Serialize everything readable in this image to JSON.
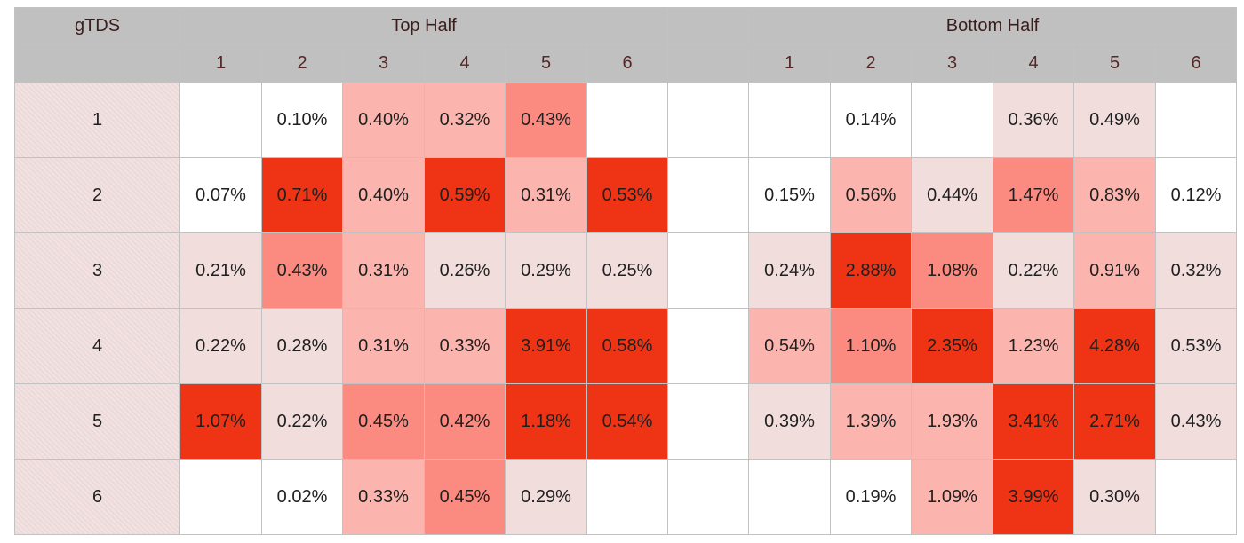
{
  "table": {
    "corner_label": "gTDS",
    "top_half_label": "Top Half",
    "bottom_half_label": "Bottom Half"
  },
  "colors": {
    "header_bg": "#c0c0c0",
    "row_label_bg": "#f1dede",
    "level_0": "#ffffff",
    "level_1": "#f2dddd",
    "level_2": "#fbb5ae",
    "level_3": "#fb8b80",
    "level_4": "#ee3415"
  },
  "chart_data": {
    "type": "heatmap",
    "unit": "%",
    "row_labels": [
      "1",
      "2",
      "3",
      "4",
      "5",
      "6"
    ],
    "column_labels": [
      "1",
      "2",
      "3",
      "4",
      "5",
      "6"
    ],
    "groups": [
      {
        "name": "Top Half",
        "values": [
          [
            null,
            0.1,
            0.4,
            0.32,
            0.43,
            null
          ],
          [
            0.07,
            0.71,
            0.4,
            0.59,
            0.31,
            0.53
          ],
          [
            0.21,
            0.43,
            0.31,
            0.26,
            0.29,
            0.25
          ],
          [
            0.22,
            0.28,
            0.31,
            0.33,
            3.91,
            0.58
          ],
          [
            1.07,
            0.22,
            0.45,
            0.42,
            1.18,
            0.54
          ],
          [
            null,
            0.02,
            0.33,
            0.45,
            0.29,
            null
          ]
        ],
        "shade_levels": [
          [
            0,
            0,
            2,
            2,
            3,
            0
          ],
          [
            0,
            4,
            2,
            4,
            2,
            4
          ],
          [
            1,
            3,
            2,
            1,
            1,
            1
          ],
          [
            1,
            1,
            2,
            2,
            4,
            4
          ],
          [
            4,
            1,
            3,
            3,
            4,
            4
          ],
          [
            0,
            0,
            2,
            3,
            1,
            0
          ]
        ]
      },
      {
        "name": "Bottom Half",
        "values": [
          [
            null,
            0.14,
            null,
            0.36,
            0.49,
            null
          ],
          [
            0.15,
            0.56,
            0.44,
            1.47,
            0.83,
            0.12
          ],
          [
            0.24,
            2.88,
            1.08,
            0.22,
            0.91,
            0.32
          ],
          [
            0.54,
            1.1,
            2.35,
            1.23,
            4.28,
            0.53
          ],
          [
            0.39,
            1.39,
            1.93,
            3.41,
            2.71,
            0.43
          ],
          [
            null,
            0.19,
            1.09,
            3.99,
            0.3,
            null
          ]
        ],
        "shade_levels": [
          [
            0,
            0,
            0,
            1,
            1,
            0
          ],
          [
            0,
            2,
            1,
            3,
            2,
            0
          ],
          [
            1,
            4,
            3,
            1,
            2,
            1
          ],
          [
            2,
            3,
            4,
            2,
            4,
            1
          ],
          [
            1,
            2,
            2,
            4,
            4,
            1
          ],
          [
            0,
            0,
            2,
            4,
            1,
            0
          ]
        ]
      }
    ]
  }
}
